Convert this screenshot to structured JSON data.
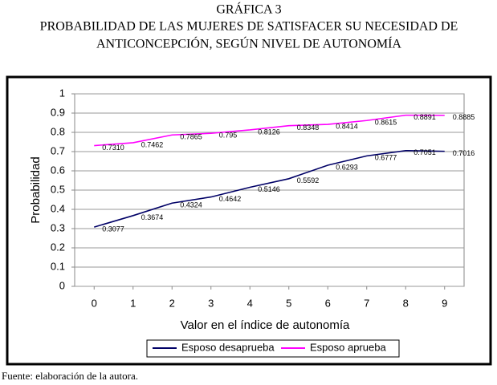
{
  "header": {
    "label": "GRÁFICA 3",
    "title_lines": [
      "PROBABILIDAD DE LAS MUJERES DE SATISFACER SU NECESIDAD DE",
      "ANTICONCEPCIÓN, SEGÚN NIVEL DE AUTONOMÍA"
    ]
  },
  "chart_data": {
    "type": "line",
    "x_label": "Valor en el índice de autonomía",
    "y_label": "Probabilidad",
    "x": [
      0,
      1,
      2,
      3,
      4,
      5,
      6,
      7,
      8,
      9
    ],
    "series": [
      {
        "name": "Esposo desaprueba",
        "color": "#000066",
        "values": [
          0.3077,
          0.3674,
          0.4324,
          0.4642,
          0.5146,
          0.5592,
          0.6293,
          0.6777,
          0.7051,
          0.7016
        ],
        "value_labels": [
          "0.3077",
          "0.3674",
          "0.4324",
          "0.4642",
          "0.5146",
          "0.5592",
          "0.6293",
          "0.6777",
          "0.7051",
          "0.7016"
        ]
      },
      {
        "name": "Esposo aprueba",
        "color": "#ff00ff",
        "values": [
          0.731,
          0.7462,
          0.7865,
          0.795,
          0.8126,
          0.8348,
          0.8414,
          0.8615,
          0.8891,
          0.8885
        ],
        "value_labels": [
          "0.7310",
          "0.7462",
          "0.7865",
          "0.795",
          "0.8126",
          "0.8348",
          "0.8414",
          "0.8615",
          "0.8891",
          "0.8885"
        ]
      }
    ],
    "xlim": [
      -0.5,
      9.5
    ],
    "xticks": [
      0,
      1,
      2,
      3,
      4,
      5,
      6,
      7,
      8,
      9
    ],
    "ylim": [
      0,
      1
    ],
    "yticks": [
      0,
      0.1,
      0.2,
      0.3,
      0.4,
      0.5,
      0.6,
      0.7,
      0.8,
      0.9,
      1
    ],
    "grid": true,
    "legend": "bottom"
  },
  "footer": {
    "source": "Fuente: elaboración de la autora."
  }
}
